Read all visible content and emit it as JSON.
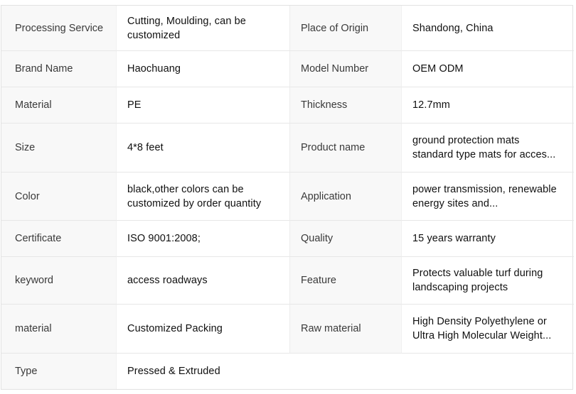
{
  "colors": {
    "label_cell_background": "#f8f8f8",
    "table_border": "#e2e2e2",
    "row_divider": "#e7e7e7",
    "label_text": "#3a3a3a",
    "value_text": "#101010"
  },
  "table": {
    "rows": [
      {
        "l1": "Processing Service",
        "v1": "Cutting, Moulding, can be customized",
        "l2": "Place of Origin",
        "v2": "Shandong, China"
      },
      {
        "l1": "Brand Name",
        "v1": "Haochuang",
        "l2": "Model Number",
        "v2": "OEM ODM"
      },
      {
        "l1": "Material",
        "v1": "PE",
        "l2": "Thickness",
        "v2": "12.7mm"
      },
      {
        "l1": "Size",
        "v1": "4*8 feet",
        "l2": "Product name",
        "v2": "ground protection mats standard type mats for acces..."
      },
      {
        "l1": "Color",
        "v1": "black,other colors can be customized by order quantity",
        "l2": "Application",
        "v2": "power transmission, renewable energy sites and..."
      },
      {
        "l1": "Certificate",
        "v1": "ISO 9001:2008;",
        "l2": "Quality",
        "v2": "15 years warranty"
      },
      {
        "l1": "keyword",
        "v1": "access roadways",
        "l2": "Feature",
        "v2": "Protects valuable turf during landscaping projects"
      },
      {
        "l1": "material",
        "v1": "Customized Packing",
        "l2": "Raw material",
        "v2": "High Density Polyethylene or Ultra High Molecular Weight..."
      },
      {
        "l1": "Type",
        "v1": "Pressed & Extruded"
      }
    ]
  }
}
